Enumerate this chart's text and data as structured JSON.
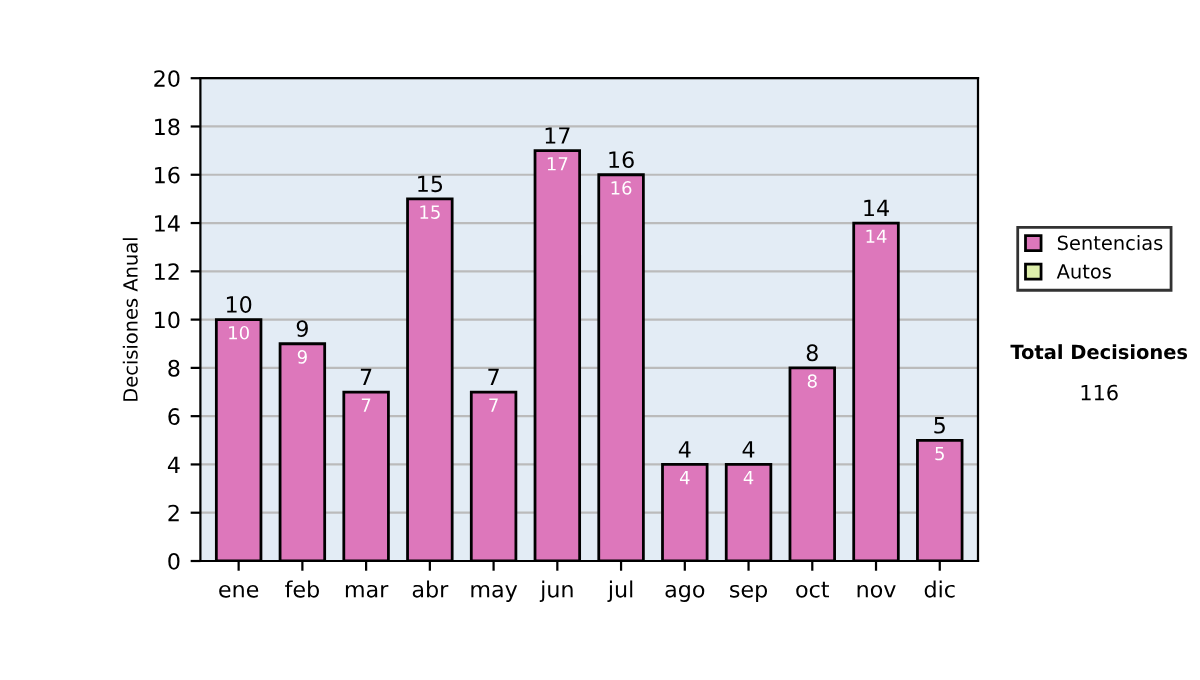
{
  "chart_data": {
    "type": "bar",
    "ylabel": "Decisiones Anual",
    "categories": [
      "ene",
      "feb",
      "mar",
      "abr",
      "may",
      "jun",
      "jul",
      "ago",
      "sep",
      "oct",
      "nov",
      "dic"
    ],
    "series": [
      {
        "name": "Sentencias",
        "color": "#dd77bb",
        "values": [
          10,
          9,
          7,
          15,
          7,
          17,
          16,
          4,
          4,
          8,
          14,
          5
        ],
        "value_labels": [
          "10",
          "9",
          "7",
          "15",
          "7",
          "17",
          "16",
          "4",
          "4",
          "8",
          "14",
          "5"
        ]
      },
      {
        "name": "Autos",
        "color": "#ddeeaa",
        "values": [
          null,
          null,
          null,
          null,
          null,
          null,
          null,
          null,
          null,
          null,
          null,
          null
        ]
      }
    ],
    "stacked": true,
    "totals": [
      "10",
      "9",
      "7",
      "15",
      "7",
      "17",
      "16",
      "4",
      "4",
      "8",
      "14",
      "5"
    ],
    "ylim": [
      0,
      20
    ],
    "yticks": [
      0,
      2,
      4,
      6,
      8,
      10,
      12,
      14,
      16,
      18,
      20
    ],
    "grid": "y",
    "legend": "right",
    "annotations": [
      "Total Decisiones",
      "116"
    ]
  }
}
